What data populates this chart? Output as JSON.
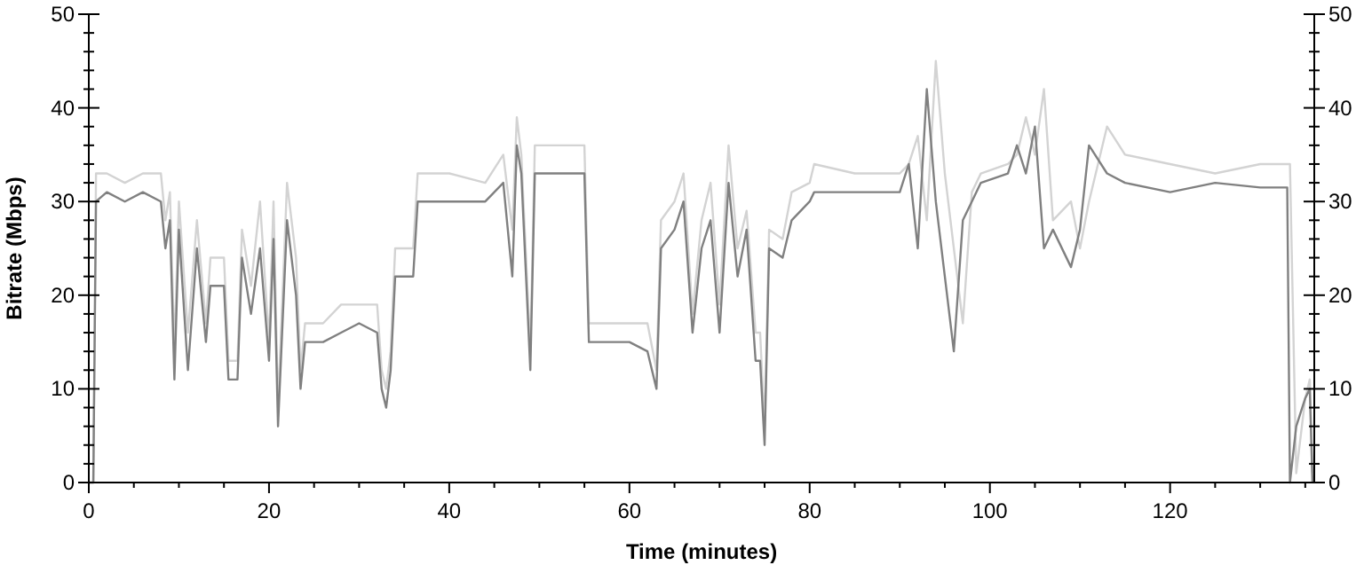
{
  "chart_data": {
    "type": "line",
    "xlabel": "Time (minutes)",
    "ylabel": "Bitrate (Mbps)",
    "xlim": [
      0,
      136
    ],
    "ylim": [
      0,
      50
    ],
    "y2lim": [
      0,
      50
    ],
    "xticks": [
      0,
      {
        "value": 5,
        "label": null
      },
      {
        "value": 10,
        "label": null
      },
      {
        "value": 15,
        "label": null
      },
      20,
      {
        "value": 25,
        "label": null
      },
      {
        "value": 30,
        "label": null
      },
      {
        "value": 35,
        "label": null
      },
      40,
      {
        "value": 45,
        "label": null
      },
      {
        "value": 50,
        "label": null
      },
      {
        "value": 55,
        "label": null
      },
      60,
      {
        "value": 65,
        "label": null
      },
      {
        "value": 70,
        "label": null
      },
      {
        "value": 75,
        "label": null
      },
      80,
      {
        "value": 85,
        "label": null
      },
      {
        "value": 90,
        "label": null
      },
      {
        "value": 95,
        "label": null
      },
      100,
      {
        "value": 105,
        "label": null
      },
      {
        "value": 110,
        "label": null
      },
      {
        "value": 115,
        "label": null
      },
      120,
      {
        "value": 125,
        "label": null
      },
      {
        "value": 130,
        "label": null
      },
      {
        "value": 135,
        "label": null
      }
    ],
    "yticks": [
      0,
      {
        "value": 2,
        "label": null
      },
      {
        "value": 4,
        "label": null
      },
      {
        "value": 6,
        "label": null
      },
      {
        "value": 8,
        "label": null
      },
      10,
      {
        "value": 12,
        "label": null
      },
      {
        "value": 14,
        "label": null
      },
      {
        "value": 16,
        "label": null
      },
      {
        "value": 18,
        "label": null
      },
      20,
      {
        "value": 22,
        "label": null
      },
      {
        "value": 24,
        "label": null
      },
      {
        "value": 26,
        "label": null
      },
      {
        "value": 28,
        "label": null
      },
      30,
      {
        "value": 32,
        "label": null
      },
      {
        "value": 34,
        "label": null
      },
      {
        "value": 36,
        "label": null
      },
      {
        "value": 38,
        "label": null
      },
      40,
      {
        "value": 42,
        "label": null
      },
      {
        "value": 44,
        "label": null
      },
      {
        "value": 46,
        "label": null
      },
      {
        "value": 48,
        "label": null
      },
      50
    ],
    "y2ticks": [
      0,
      {
        "value": 2,
        "label": null
      },
      {
        "value": 4,
        "label": null
      },
      {
        "value": 6,
        "label": null
      },
      {
        "value": 8,
        "label": null
      },
      10,
      {
        "value": 12,
        "label": null
      },
      {
        "value": 14,
        "label": null
      },
      {
        "value": 16,
        "label": null
      },
      {
        "value": 18,
        "label": null
      },
      20,
      {
        "value": 22,
        "label": null
      },
      {
        "value": 24,
        "label": null
      },
      {
        "value": 26,
        "label": null
      },
      {
        "value": 28,
        "label": null
      },
      30,
      {
        "value": 32,
        "label": null
      },
      {
        "value": 34,
        "label": null
      },
      {
        "value": 36,
        "label": null
      },
      {
        "value": 38,
        "label": null
      },
      40,
      {
        "value": 42,
        "label": null
      },
      {
        "value": 44,
        "label": null
      },
      {
        "value": 46,
        "label": null
      },
      {
        "value": 48,
        "label": null
      },
      50
    ],
    "grid": false,
    "marker": "none",
    "line_style": "solid",
    "series": [
      {
        "color": "#d3d3d3",
        "x": [
          0,
          0.5,
          0.8,
          2,
          4,
          6,
          8,
          8.5,
          9,
          9.5,
          10,
          11,
          12,
          13,
          13.5,
          15,
          15.5,
          16.5,
          17,
          18,
          19,
          20,
          20.5,
          21,
          22,
          23,
          23.5,
          24,
          26,
          28,
          30,
          32,
          32.5,
          33,
          33.5,
          34,
          36,
          36.5,
          40,
          44,
          46,
          47,
          47.5,
          48,
          49,
          49.5,
          52,
          55,
          55.5,
          58,
          60,
          62,
          63,
          63.5,
          65,
          66,
          67,
          68,
          69,
          70,
          71,
          72,
          73,
          74,
          74.5,
          75,
          75.5,
          77,
          78,
          80,
          80.5,
          85,
          90,
          91,
          92,
          93,
          94,
          95,
          96,
          97,
          98,
          99,
          102,
          103,
          104,
          105,
          106,
          107,
          109,
          110,
          111,
          113,
          115,
          120,
          125,
          130,
          133,
          133.3,
          134,
          135,
          135.5,
          135.8
        ],
        "values": [
          0,
          0,
          33,
          33,
          32,
          33,
          33,
          28,
          31,
          14,
          30,
          16,
          28,
          17,
          24,
          24,
          13,
          13,
          27,
          21,
          30,
          15,
          30,
          8,
          32,
          24,
          12,
          17,
          17,
          19,
          19,
          19,
          12,
          10,
          14,
          25,
          25,
          33,
          33,
          32,
          35,
          27,
          39,
          35,
          14,
          36,
          36,
          36,
          17,
          17,
          17,
          17,
          12,
          28,
          30,
          33,
          18,
          28,
          32,
          19,
          36,
          25,
          29,
          16,
          16,
          6,
          27,
          26,
          31,
          32,
          34,
          33,
          33,
          34,
          37,
          28,
          45,
          33,
          25,
          17,
          31,
          33,
          34,
          35,
          39,
          35,
          42,
          28,
          30,
          25,
          30,
          38,
          35,
          34,
          33,
          34,
          34,
          34,
          1,
          9,
          11,
          1
        ]
      },
      {
        "color": "#808080",
        "x": [
          0,
          0.5,
          0.8,
          2,
          4,
          6,
          8,
          8.5,
          9,
          9.5,
          10,
          11,
          12,
          13,
          13.5,
          15,
          15.5,
          16.5,
          17,
          18,
          19,
          20,
          20.5,
          21,
          22,
          23,
          23.5,
          24,
          26,
          28,
          30,
          32,
          32.5,
          33,
          33.5,
          34,
          36,
          36.5,
          40,
          44,
          46,
          47,
          47.5,
          48,
          49,
          49.5,
          52,
          55,
          55.5,
          58,
          60,
          62,
          63,
          63.5,
          65,
          66,
          67,
          68,
          69,
          70,
          71,
          72,
          73,
          74,
          74.5,
          75,
          75.5,
          77,
          78,
          80,
          80.5,
          85,
          90,
          91,
          92,
          93,
          94,
          95,
          96,
          97,
          98,
          99,
          102,
          103,
          104,
          105,
          106,
          107,
          109,
          110,
          111,
          113,
          115,
          120,
          125,
          130,
          133,
          133.3,
          134,
          135,
          135.5,
          135.8
        ],
        "values": [
          0,
          0,
          30,
          31,
          30,
          31,
          30,
          25,
          28,
          11,
          27,
          12,
          25,
          15,
          21,
          21,
          11,
          11,
          24,
          18,
          25,
          13,
          26,
          6,
          28,
          20,
          10,
          15,
          15,
          16,
          17,
          16,
          10,
          8,
          12,
          22,
          22,
          30,
          30,
          30,
          32,
          22,
          36,
          33,
          12,
          33,
          33,
          33,
          15,
          15,
          15,
          14,
          10,
          25,
          27,
          30,
          16,
          25,
          28,
          16,
          32,
          22,
          27,
          13,
          13,
          4,
          25,
          24,
          28,
          30,
          31,
          31,
          31,
          34,
          25,
          42,
          30,
          22,
          14,
          28,
          30,
          32,
          33,
          36,
          33,
          38,
          25,
          27,
          23,
          27,
          36,
          33,
          32,
          31,
          32,
          31.5,
          31.5,
          0,
          6,
          9,
          10,
          0
        ]
      }
    ]
  }
}
